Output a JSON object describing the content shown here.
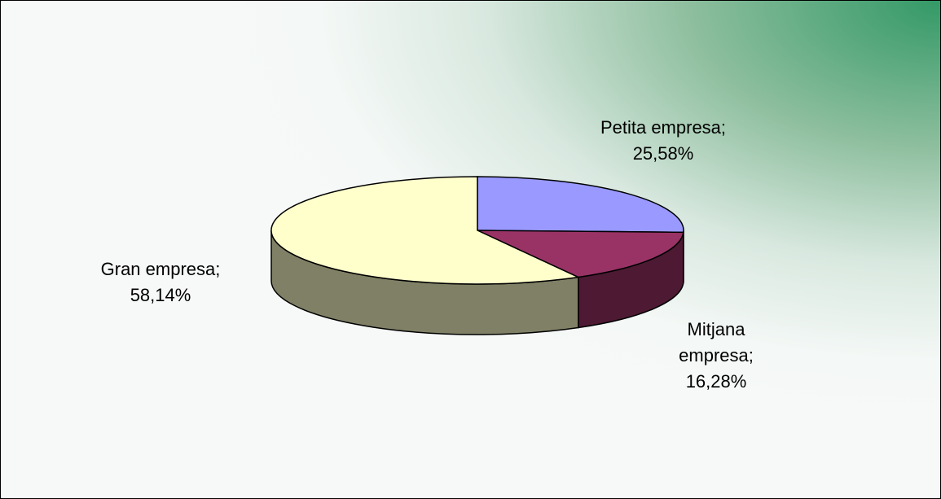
{
  "chart_data": {
    "type": "pie3d",
    "categories": [
      "Petita empresa",
      "Mitjana empresa",
      "Gran empresa"
    ],
    "values": [
      25.58,
      16.28,
      58.14
    ],
    "value_labels": [
      "25,58%",
      "16,28%",
      "58,14%"
    ],
    "label_separator": ";",
    "colors": [
      "#9999ff",
      "#993366",
      "#ffffcc"
    ],
    "side_colors": [
      "#4d4d80",
      "#4d1933",
      "#808066"
    ]
  }
}
